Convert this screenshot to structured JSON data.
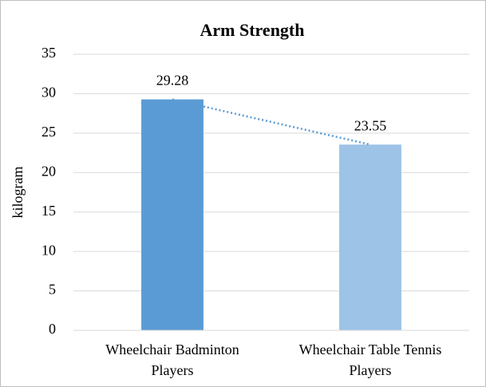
{
  "chart_data": {
    "type": "bar",
    "title": "Arm Strength",
    "y_label": "kilogram",
    "categories": [
      "Wheelchair Badminton Players",
      "Wheelchair Table Tennis Players"
    ],
    "values": [
      29.28,
      23.55
    ],
    "colors": [
      "#5b9bd5",
      "#9dc3e6"
    ],
    "ylim": [
      0,
      35
    ],
    "yticks": [
      0,
      5,
      10,
      15,
      20,
      25,
      30,
      35
    ],
    "grid": true,
    "trendline": true,
    "trendline_color": "#5b9bd5"
  }
}
